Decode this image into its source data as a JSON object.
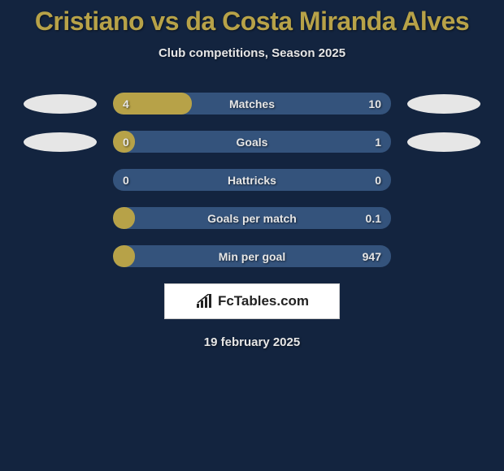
{
  "title": "Cristiano vs da Costa Miranda Alves",
  "subtitle": "Club competitions, Season 2025",
  "date": "19 february 2025",
  "colors": {
    "background": "#13243f",
    "accent": "#b7a248",
    "bar_bg": "#34537c",
    "text": "#e6e6e6",
    "oval": "#e6e6e6",
    "logo_bg": "#ffffff"
  },
  "stats": [
    {
      "label": "Matches",
      "left_value": "4",
      "right_value": "10",
      "fill_percent": 28.5,
      "show_ovals": true
    },
    {
      "label": "Goals",
      "left_value": "0",
      "right_value": "1",
      "fill_percent": 8,
      "show_ovals": true
    },
    {
      "label": "Hattricks",
      "left_value": "0",
      "right_value": "0",
      "fill_percent": 0,
      "show_ovals": false
    },
    {
      "label": "Goals per match",
      "left_value": "",
      "right_value": "0.1",
      "fill_percent": 8,
      "show_ovals": false
    },
    {
      "label": "Min per goal",
      "left_value": "",
      "right_value": "947",
      "fill_percent": 8,
      "show_ovals": false
    }
  ],
  "logo": {
    "text": "FcTables.com"
  }
}
